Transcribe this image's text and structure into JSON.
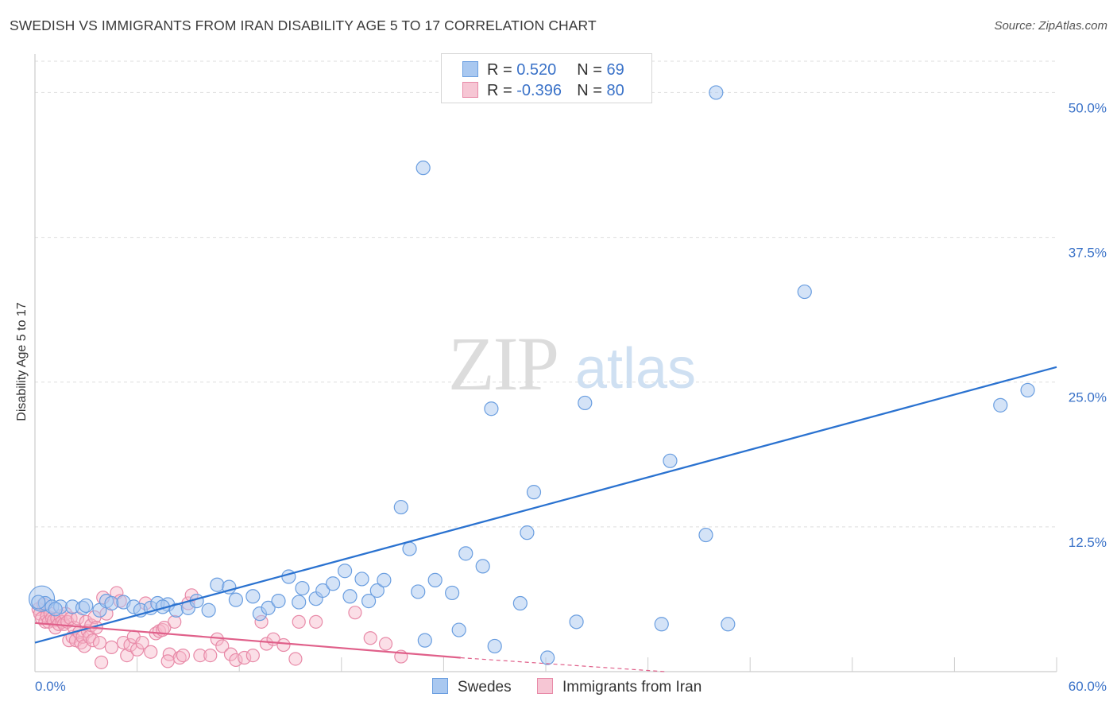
{
  "header": {
    "title": "SWEDISH VS IMMIGRANTS FROM IRAN DISABILITY AGE 5 TO 17 CORRELATION CHART",
    "source": "Source: ZipAtlas.com"
  },
  "watermark": {
    "zip": "ZIP",
    "atlas": "atlas"
  },
  "legend": {
    "rows": [
      {
        "r_label": "R = ",
        "r_value": "0.520",
        "n_label": "N = ",
        "n_value": "69"
      },
      {
        "r_label": "R = ",
        "r_value": "-0.396",
        "n_label": "N = ",
        "n_value": "80"
      }
    ]
  },
  "colors": {
    "swedes_fill": "#a9c8f0",
    "swedes_stroke": "#6a9ee0",
    "swedes_line": "#2a72d0",
    "iran_fill": "#f6b8ca",
    "iran_stroke": "#e88aa8",
    "iran_line": "#e0608a",
    "tick_label": "#3a72c8",
    "grid": "#dddddd"
  },
  "chart_data": {
    "type": "scatter",
    "title": "SWEDISH VS IMMIGRANTS FROM IRAN DISABILITY AGE 5 TO 17 CORRELATION CHART",
    "xlabel": "",
    "ylabel": "Disability Age 5 to 17",
    "xlim": [
      0,
      60
    ],
    "ylim": [
      0,
      52.5
    ],
    "x_tick_labels": [
      "0.0%",
      "60.0%"
    ],
    "y_ticks": [
      12.5,
      25.0,
      37.5,
      50.0
    ],
    "y_tick_labels": [
      "12.5%",
      "25.0%",
      "37.5%",
      "50.0%"
    ],
    "grid": true,
    "legend_position": "top-center",
    "series": [
      {
        "name": "Swedes",
        "r": 0.52,
        "n": 69,
        "trend": {
          "x": [
            0,
            60
          ],
          "y": [
            2.5,
            26.3
          ]
        },
        "points": [
          [
            0.4,
            6.3
          ],
          [
            0.6,
            5.9
          ],
          [
            1.0,
            5.6
          ],
          [
            1.5,
            5.6
          ],
          [
            2.2,
            5.6
          ],
          [
            2.8,
            5.5
          ],
          [
            3.8,
            5.3
          ],
          [
            4.2,
            6.1
          ],
          [
            4.5,
            5.9
          ],
          [
            5.2,
            6.0
          ],
          [
            5.8,
            5.6
          ],
          [
            6.2,
            5.3
          ],
          [
            6.8,
            5.5
          ],
          [
            7.2,
            5.9
          ],
          [
            7.8,
            5.8
          ],
          [
            8.3,
            5.3
          ],
          [
            9.0,
            5.5
          ],
          [
            9.5,
            6.1
          ],
          [
            10.2,
            5.3
          ],
          [
            10.7,
            7.5
          ],
          [
            11.4,
            7.3
          ],
          [
            11.8,
            6.2
          ],
          [
            12.8,
            6.5
          ],
          [
            13.2,
            5.0
          ],
          [
            13.7,
            5.5
          ],
          [
            14.3,
            6.1
          ],
          [
            14.9,
            8.2
          ],
          [
            15.5,
            6.0
          ],
          [
            15.7,
            7.2
          ],
          [
            16.5,
            6.3
          ],
          [
            16.9,
            7.0
          ],
          [
            17.5,
            7.6
          ],
          [
            18.2,
            8.7
          ],
          [
            18.5,
            6.5
          ],
          [
            19.2,
            8.0
          ],
          [
            19.6,
            6.1
          ],
          [
            20.1,
            7.0
          ],
          [
            20.5,
            7.9
          ],
          [
            21.5,
            14.2
          ],
          [
            22.0,
            10.6
          ],
          [
            22.5,
            6.9
          ],
          [
            22.8,
            43.5
          ],
          [
            22.9,
            2.7
          ],
          [
            23.5,
            7.9
          ],
          [
            24.5,
            6.8
          ],
          [
            24.9,
            3.6
          ],
          [
            25.3,
            10.2
          ],
          [
            26.3,
            9.1
          ],
          [
            26.8,
            22.7
          ],
          [
            27.0,
            2.2
          ],
          [
            28.5,
            5.9
          ],
          [
            28.9,
            12.0
          ],
          [
            29.3,
            15.5
          ],
          [
            30.1,
            1.2
          ],
          [
            31.8,
            4.3
          ],
          [
            32.3,
            23.2
          ],
          [
            32.8,
            50.0
          ],
          [
            36.8,
            4.1
          ],
          [
            37.3,
            18.2
          ],
          [
            39.4,
            11.8
          ],
          [
            40.0,
            50.0
          ],
          [
            40.7,
            4.1
          ],
          [
            45.2,
            32.8
          ],
          [
            56.7,
            23.0
          ],
          [
            58.3,
            24.3
          ],
          [
            0.2,
            6.0
          ],
          [
            1.2,
            5.4
          ],
          [
            3.0,
            5.7
          ],
          [
            7.5,
            5.6
          ]
        ]
      },
      {
        "name": "Immigrants from Iran",
        "r": -0.396,
        "n": 80,
        "trend": {
          "x": [
            0,
            25
          ],
          "y": [
            4.2,
            1.2
          ]
        },
        "trend_dashed": {
          "x": [
            25,
            37
          ],
          "y": [
            1.2,
            0.0
          ]
        },
        "points": [
          [
            0.2,
            5.4
          ],
          [
            0.3,
            5.0
          ],
          [
            0.4,
            4.6
          ],
          [
            0.5,
            5.8
          ],
          [
            0.6,
            4.3
          ],
          [
            0.7,
            4.8
          ],
          [
            0.8,
            4.3
          ],
          [
            0.9,
            5.0
          ],
          [
            1.0,
            4.6
          ],
          [
            1.1,
            4.4
          ],
          [
            1.2,
            3.8
          ],
          [
            1.3,
            4.6
          ],
          [
            1.4,
            4.1
          ],
          [
            1.5,
            4.8
          ],
          [
            1.6,
            4.3
          ],
          [
            1.7,
            4.1
          ],
          [
            1.8,
            5.0
          ],
          [
            1.9,
            4.3
          ],
          [
            2.0,
            2.7
          ],
          [
            2.1,
            4.6
          ],
          [
            2.2,
            3.0
          ],
          [
            2.3,
            3.8
          ],
          [
            2.4,
            2.7
          ],
          [
            2.5,
            4.6
          ],
          [
            2.6,
            3.4
          ],
          [
            2.7,
            2.5
          ],
          [
            2.8,
            3.0
          ],
          [
            2.9,
            2.2
          ],
          [
            3.0,
            4.3
          ],
          [
            3.1,
            3.5
          ],
          [
            3.2,
            3.0
          ],
          [
            3.3,
            4.0
          ],
          [
            3.4,
            2.7
          ],
          [
            3.5,
            4.7
          ],
          [
            3.6,
            3.8
          ],
          [
            3.8,
            2.5
          ],
          [
            4.0,
            6.4
          ],
          [
            4.2,
            5.0
          ],
          [
            4.5,
            2.1
          ],
          [
            4.8,
            6.8
          ],
          [
            5.0,
            6.1
          ],
          [
            5.2,
            2.5
          ],
          [
            5.4,
            1.4
          ],
          [
            5.6,
            2.3
          ],
          [
            5.8,
            3.0
          ],
          [
            6.0,
            1.9
          ],
          [
            6.3,
            2.5
          ],
          [
            6.5,
            5.9
          ],
          [
            6.8,
            1.7
          ],
          [
            7.1,
            3.3
          ],
          [
            7.3,
            3.5
          ],
          [
            7.5,
            3.6
          ],
          [
            7.6,
            3.8
          ],
          [
            7.9,
            1.5
          ],
          [
            8.2,
            4.3
          ],
          [
            8.5,
            1.2
          ],
          [
            8.7,
            1.4
          ],
          [
            9.0,
            5.9
          ],
          [
            9.2,
            6.6
          ],
          [
            9.7,
            1.4
          ],
          [
            10.3,
            1.4
          ],
          [
            10.7,
            2.8
          ],
          [
            11.0,
            2.2
          ],
          [
            11.5,
            1.5
          ],
          [
            11.8,
            1.0
          ],
          [
            12.3,
            1.2
          ],
          [
            12.8,
            1.4
          ],
          [
            13.3,
            4.3
          ],
          [
            13.6,
            2.4
          ],
          [
            14.0,
            2.8
          ],
          [
            14.6,
            2.3
          ],
          [
            15.3,
            1.1
          ],
          [
            15.5,
            4.3
          ],
          [
            16.5,
            4.3
          ],
          [
            18.8,
            5.1
          ],
          [
            19.7,
            2.9
          ],
          [
            20.6,
            2.4
          ],
          [
            21.5,
            1.3
          ],
          [
            3.9,
            0.8
          ],
          [
            7.8,
            0.9
          ]
        ]
      }
    ]
  }
}
